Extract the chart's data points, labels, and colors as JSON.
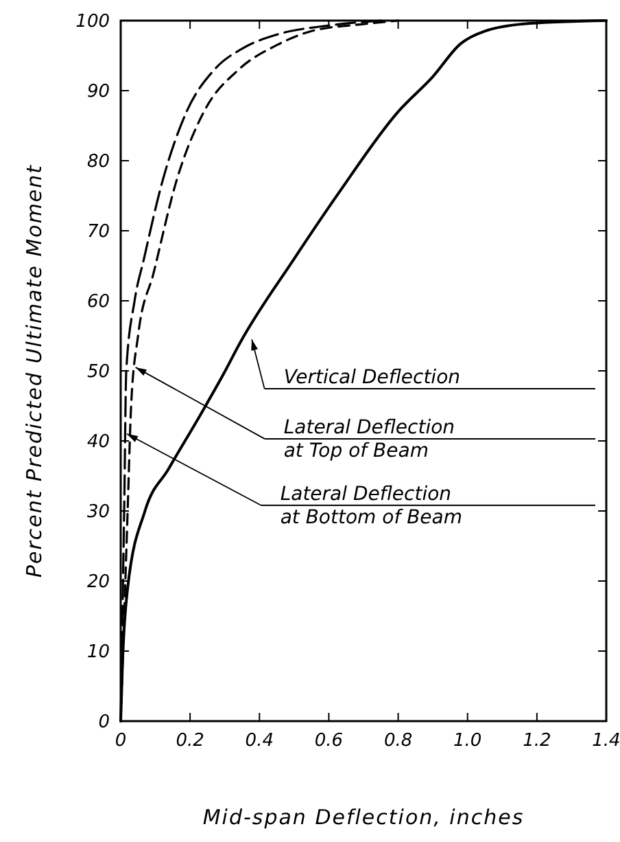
{
  "chart_data": {
    "type": "line",
    "xlabel": "Mid-span Deflection, inches",
    "ylabel": "Percent Predicted Ultimate Moment",
    "xlim": [
      0,
      1.4
    ],
    "ylim": [
      0,
      100
    ],
    "xticks": [
      0,
      0.2,
      0.4,
      0.6,
      0.8,
      {
        "value": 1,
        "label": "1.0"
      },
      1.2,
      1.4
    ],
    "yticks": [
      0,
      10,
      20,
      30,
      40,
      50,
      60,
      70,
      80,
      90,
      100
    ],
    "grid": false,
    "marker": "none",
    "series": [
      {
        "color": "#000000",
        "line_style": "solid",
        "x": [
          0,
          0.005,
          0.02,
          0.07,
          0.138,
          0.233,
          0.297,
          0.344,
          0.5,
          0.63,
          0.8,
          0.9,
          0.98,
          1.05,
          1.18,
          1.4
        ],
        "values": [
          0,
          8,
          19,
          30,
          36,
          44,
          49.6,
          54,
          66,
          75.5,
          87,
          92,
          96.7,
          98.5,
          99.6,
          100
        ]
      },
      {
        "color": "#000000",
        "line_style": "dashed",
        "x": [
          0.003,
          0.01,
          0.016,
          0.04,
          0.067,
          0.12,
          0.19,
          0.27,
          0.35,
          0.45,
          0.6,
          0.75
        ],
        "values": [
          10,
          30,
          50,
          60,
          66,
          77,
          87,
          93,
          96,
          98,
          99.3,
          100
        ]
      },
      {
        "color": "#000000",
        "line_style": "dashed",
        "x": [
          0,
          0.01,
          0.02,
          0.03,
          0.05,
          0.095,
          0.16,
          0.24,
          0.34,
          0.45,
          0.55,
          0.7,
          0.8
        ],
        "values": [
          0,
          15,
          30,
          45,
          55,
          64,
          77,
          87,
          93,
          96.5,
          98.5,
          99.5,
          100
        ]
      }
    ],
    "annotations": [
      {
        "text": "Vertical Deflection",
        "x": 0.37,
        "y": 54.5
      },
      {
        "text": "Lateral Deflection\nat Top of Beam",
        "x": 0.035,
        "y": 50.5
      },
      {
        "text": "Lateral Deflection\nat Bottom of Beam",
        "x": 0.01,
        "y": 41
      }
    ]
  }
}
